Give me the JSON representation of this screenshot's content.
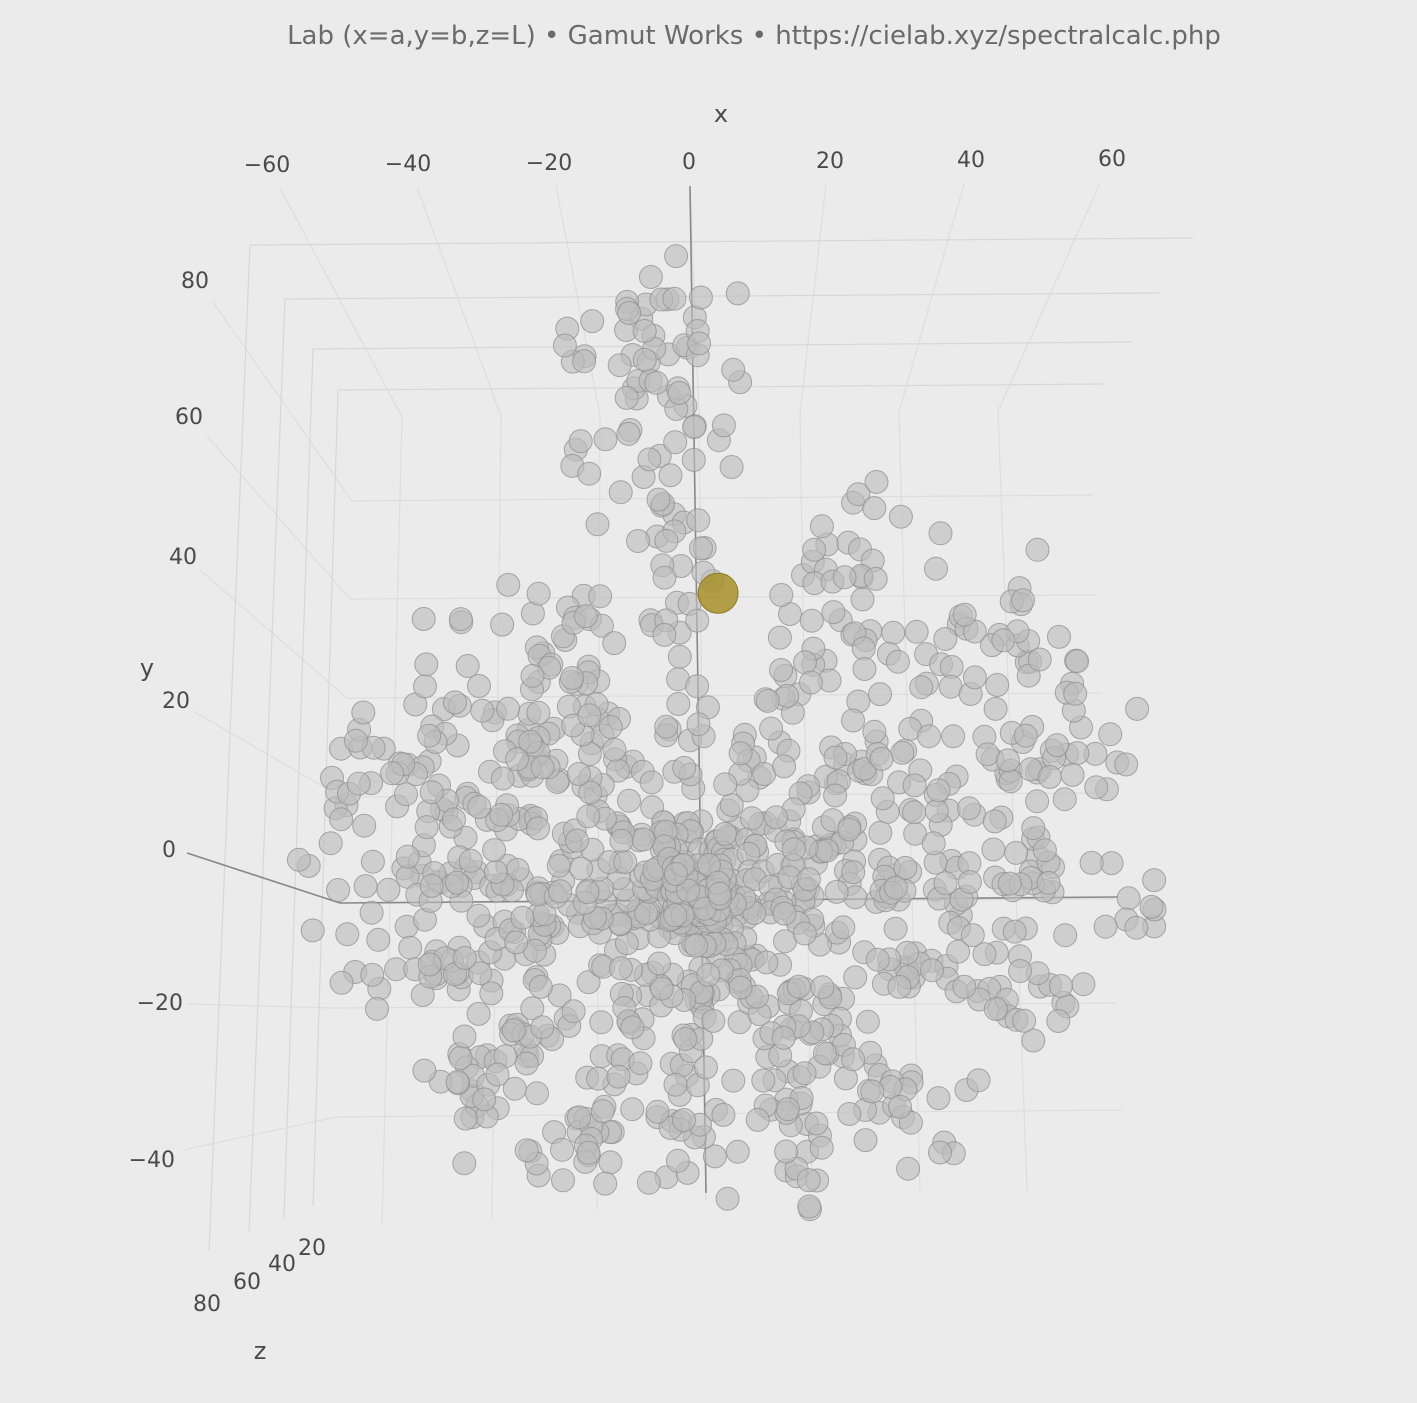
{
  "chart_data": {
    "type": "scatter",
    "title": "Lab (x=a,y=b,z=L)  •  Gamut Works  •  https://cielab.xyz/spectralcalc.php",
    "xlabel": "x",
    "ylabel": "y",
    "zlabel": "z",
    "x_ticks": [
      "−60",
      "−40",
      "−20",
      "0",
      "20",
      "40",
      "60"
    ],
    "y_ticks": [
      "80",
      "60",
      "40",
      "20",
      "0",
      "−20",
      "−40"
    ],
    "z_ticks": [
      "20",
      "40",
      "60",
      "80"
    ],
    "xlim": [
      -62,
      66
    ],
    "ylim": [
      -46,
      88
    ],
    "zlim": [
      5,
      95
    ],
    "grid": true,
    "marker_color": "#bdbdbd",
    "highlight_color": "#a8902a",
    "highlight_point": {
      "x": 3,
      "y": 42,
      "z": 50
    },
    "spokes": [
      {
        "angle": 95,
        "length": 85
      },
      {
        "angle": 120,
        "length": 50
      },
      {
        "angle": 65,
        "length": 60
      },
      {
        "angle": 40,
        "length": 62
      },
      {
        "angle": 20,
        "length": 65
      },
      {
        "angle": 2,
        "length": 66
      },
      {
        "angle": -18,
        "length": 55
      },
      {
        "angle": -45,
        "length": 48
      },
      {
        "angle": -65,
        "length": 44
      },
      {
        "angle": -90,
        "length": 40
      },
      {
        "angle": -115,
        "length": 44
      },
      {
        "angle": -140,
        "length": 48
      },
      {
        "angle": -165,
        "length": 52
      },
      {
        "angle": 178,
        "length": 55
      },
      {
        "angle": 160,
        "length": 58
      },
      {
        "angle": 140,
        "length": 52
      }
    ]
  }
}
